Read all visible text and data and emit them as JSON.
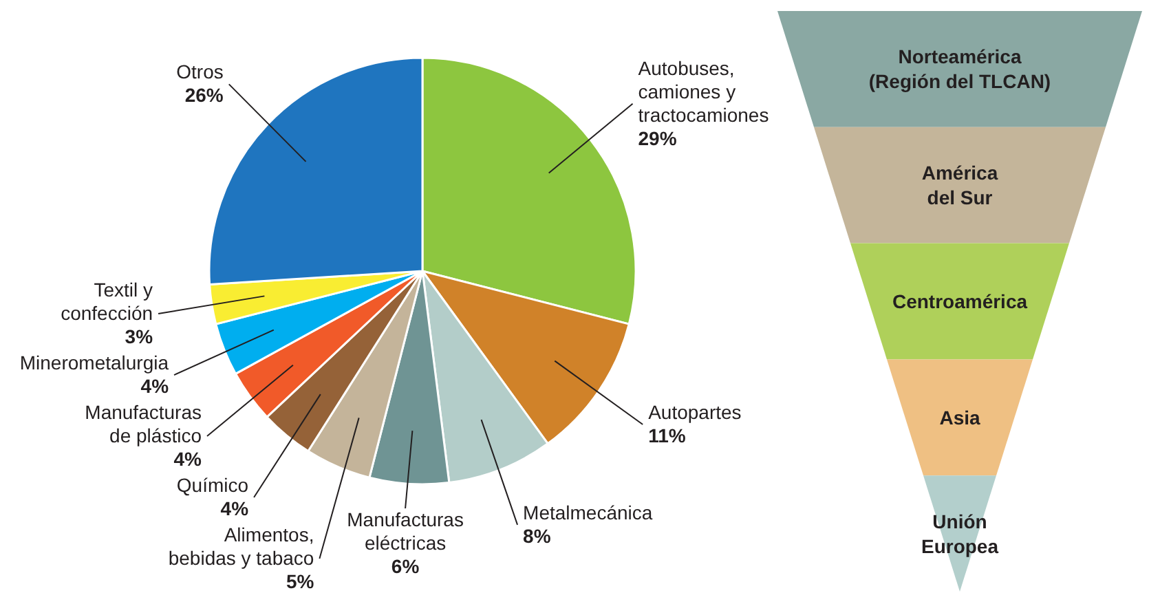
{
  "chart_data": [
    {
      "type": "pie",
      "categories": [
        "Autobuses,\ncamiones y\ntractocamiones",
        "Autopartes",
        "Metalmecánica",
        "Manufacturas\neléctricas",
        "Alimentos,\nbebidas y tabaco",
        "Químico",
        "Manufacturas\nde plástico",
        "Minerometalurgia",
        "Textil y\nconfección",
        "Otros"
      ],
      "values": [
        29,
        11,
        8,
        6,
        5,
        4,
        4,
        4,
        3,
        26
      ],
      "value_labels": [
        "29%",
        "11%",
        "8%",
        "6%",
        "5%",
        "4%",
        "4%",
        "4%",
        "3%",
        "26%"
      ],
      "colors": [
        "#8dc63f",
        "#d08229",
        "#b3cdc9",
        "#6f9494",
        "#c4b49a",
        "#956238",
        "#f15a29",
        "#00aeef",
        "#f9ed32",
        "#1f75bf"
      ]
    },
    {
      "type": "other",
      "categories": [
        "Norteamérica\n(Región del TLCAN)",
        "América\ndel Sur",
        "Centroamérica",
        "Asia",
        "Unión\nEuropea"
      ],
      "colors": [
        "#8aa8a3",
        "#c4b59a",
        "#afd05a",
        "#efc083",
        "#b3cfcc"
      ]
    }
  ]
}
